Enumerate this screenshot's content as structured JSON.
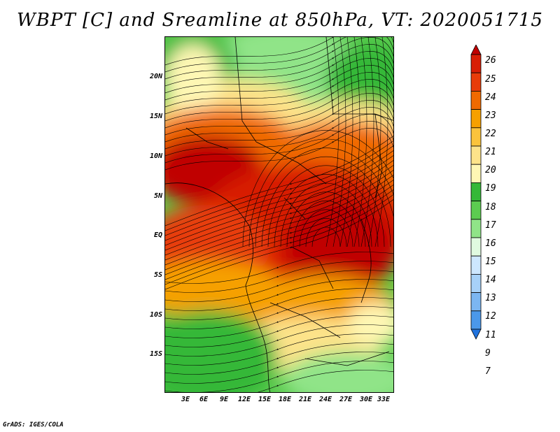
{
  "title": "WBPT [C] and Sreamline at 850hPa, VT: 2020051715",
  "footer": "GrADS: IGES/COLA",
  "axes": {
    "lat_labels": [
      "20N",
      "15N",
      "10N",
      "5N",
      "EQ",
      "5S",
      "10S",
      "15S"
    ],
    "lon_labels": [
      "3E",
      "6E",
      "9E",
      "12E",
      "15E",
      "18E",
      "21E",
      "24E",
      "27E",
      "30E",
      "33E"
    ]
  },
  "colorbar": {
    "labels": [
      "26",
      "25",
      "24",
      "23",
      "22",
      "21",
      "20",
      "19",
      "18",
      "17",
      "16",
      "15",
      "14",
      "13",
      "12",
      "11",
      "9",
      "7"
    ],
    "colors": [
      "#c00000",
      "#d81e05",
      "#e83c09",
      "#f06a00",
      "#f6a000",
      "#fbc33c",
      "#fde38a",
      "#fef7b4",
      "#34b838",
      "#5ccc50",
      "#90e488",
      "#e0fae0",
      "#cde7ff",
      "#a7d1f8",
      "#7cb6f1",
      "#4b98ea",
      "#2173dd"
    ]
  }
}
